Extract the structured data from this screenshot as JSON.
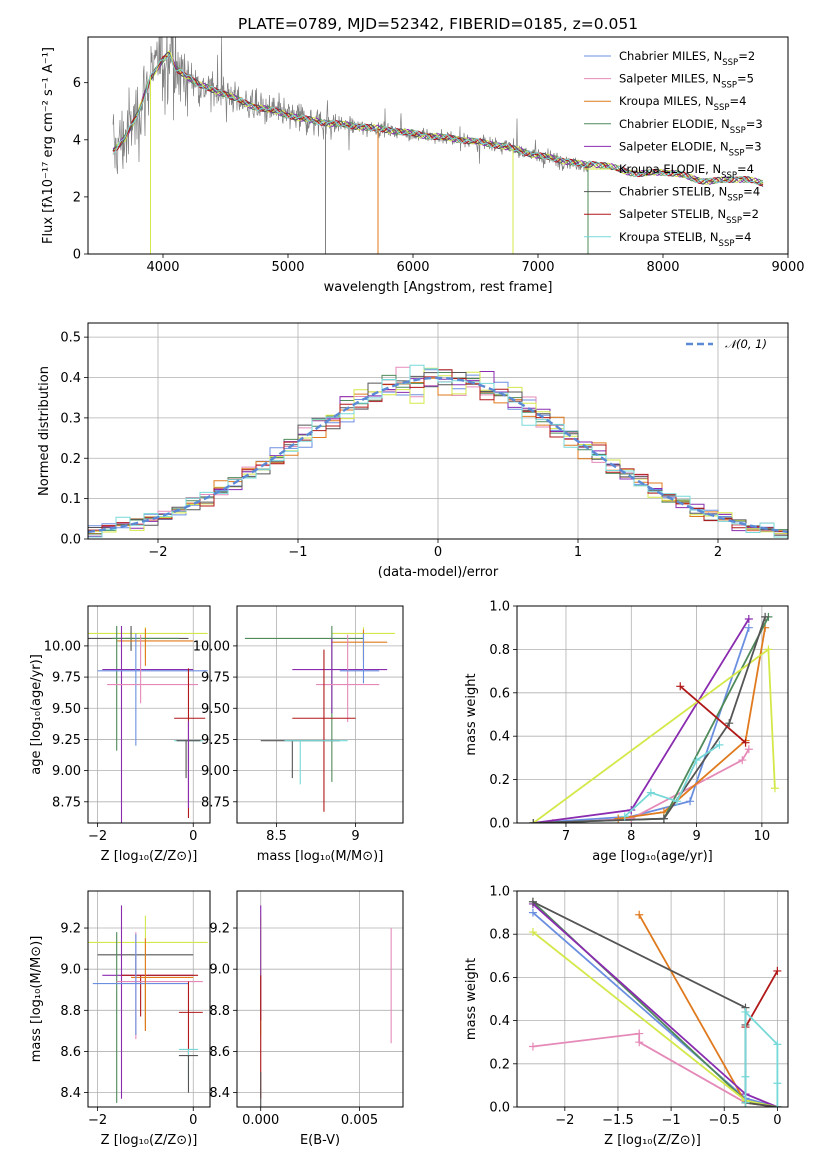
{
  "colors": {
    "Chabrier MILES": "#6b8fe0",
    "Salpeter MILES": "#e58ab8",
    "Kroupa MILES": "#e07a1e",
    "Chabrier ELODIE": "#4f8a5a",
    "Salpeter ELODIE": "#8a2bb0",
    "Kroupa ELODIE": "#d4e84a",
    "Chabrier STELIB": "#555555",
    "Salpeter STELIB": "#b01818",
    "Kroupa STELIB": "#77d8d8",
    "gauss": "#5a8ad6",
    "data": "#808080"
  },
  "chart_data": [
    {
      "type": "line",
      "title": "PLATE=0789, MJD=52342, FIBERID=0185, z=0.051",
      "xlabel": "wavelength [Angstrom, rest frame]",
      "ylabel": "Flux [fλ10⁻¹⁷ erg cm⁻² s⁻¹ A⁻¹]",
      "xlim": [
        3400,
        9000
      ],
      "ylim": [
        0,
        7.6
      ],
      "xticks": [
        4000,
        5000,
        6000,
        7000,
        8000,
        9000
      ],
      "yticks": [
        0,
        2,
        4,
        6
      ],
      "legend_position": "top-right",
      "legend": [
        {
          "name": "Chabrier MILES",
          "nssp": "2"
        },
        {
          "name": "Salpeter MILES",
          "nssp": "5"
        },
        {
          "name": "Kroupa MILES",
          "nssp": "4"
        },
        {
          "name": "Chabrier ELODIE",
          "nssp": "3"
        },
        {
          "name": "Salpeter ELODIE",
          "nssp": "3"
        },
        {
          "name": "Kroupa ELODIE",
          "nssp": "4"
        },
        {
          "name": "Chabrier STELIB",
          "nssp": "4"
        },
        {
          "name": "Salpeter STELIB",
          "nssp": "2"
        },
        {
          "name": "Kroupa STELIB",
          "nssp": "4"
        }
      ],
      "model_continuum": {
        "x": [
          3600,
          3700,
          3800,
          3900,
          4000,
          4050,
          4100,
          4200,
          4300,
          4500,
          4700,
          4900,
          5100,
          5300,
          5500,
          5800,
          6100,
          6400,
          6700,
          7000,
          7400,
          7700,
          8000,
          8300,
          8600,
          8800
        ],
        "y": [
          3.6,
          4.1,
          4.9,
          6.2,
          6.8,
          7.0,
          6.5,
          6.2,
          5.9,
          5.6,
          5.2,
          5.0,
          4.75,
          4.6,
          4.5,
          4.35,
          4.15,
          4.0,
          3.8,
          3.45,
          3.1,
          2.95,
          2.8,
          2.65,
          2.55,
          2.5
        ]
      },
      "data_extent": [
        3600,
        7400
      ],
      "models_red_extent": [
        7400,
        8800
      ]
    },
    {
      "type": "line",
      "xlabel": "(data-model)/error",
      "ylabel": "Normed distribution",
      "xlim": [
        -2.5,
        2.5
      ],
      "ylim": [
        0,
        0.535
      ],
      "xticks": [
        -2,
        -1,
        0,
        1,
        2
      ],
      "yticks": [
        0.0,
        0.1,
        0.2,
        0.3,
        0.4,
        0.5
      ],
      "grid": true,
      "legend_position": "top-right",
      "legend": [
        "𝒩(0, 1)"
      ],
      "bin_width": 0.1
    },
    {
      "type": "scatter",
      "xlabel": "Z [log₁₀(Z/Z⊙)]",
      "ylabel": "age  [log₁₀(age/yr)]",
      "xlim": [
        -2.2,
        0.35
      ],
      "ylim": [
        8.58,
        10.32
      ],
      "xticks": [
        -2,
        0
      ],
      "yticks": [
        8.75,
        9.0,
        9.25,
        9.5,
        9.75,
        10.0
      ],
      "grid": true
    },
    {
      "type": "scatter",
      "xlabel": "mass [log₁₀(M/M⊙)]",
      "xlim": [
        8.25,
        9.3
      ],
      "ylim": [
        8.58,
        10.32
      ],
      "xticks": [
        8.5,
        9.0
      ],
      "yticks": [
        8.75,
        9.0,
        9.25,
        9.5,
        9.75,
        10.0
      ],
      "grid": true
    },
    {
      "type": "line",
      "xlabel": "age  [log₁₀(age/yr)]",
      "ylabel": "mass weight",
      "xlim": [
        6.25,
        10.4
      ],
      "ylim": [
        0,
        1.0
      ],
      "xticks": [
        7,
        8,
        9,
        10
      ],
      "yticks": [
        0.0,
        0.2,
        0.4,
        0.6,
        0.8,
        1.0
      ],
      "grid": true,
      "series": [
        {
          "name": "Chabrier MILES",
          "x": [
            6.5,
            8.0,
            8.9,
            9.8
          ],
          "y": [
            0.0,
            0.03,
            0.1,
            0.9
          ]
        },
        {
          "name": "Salpeter MILES",
          "x": [
            6.8,
            8.0,
            9.7,
            9.8
          ],
          "y": [
            0.0,
            0.02,
            0.29,
            0.34
          ]
        },
        {
          "name": "Kroupa MILES",
          "x": [
            7.8,
            8.5,
            9.75,
            10.05
          ],
          "y": [
            0.02,
            0.05,
            0.38,
            0.9
          ]
        },
        {
          "name": "Chabrier ELODIE",
          "x": [
            6.5,
            8.5,
            10.1
          ],
          "y": [
            0.0,
            0.02,
            0.95
          ]
        },
        {
          "name": "Salpeter ELODIE",
          "x": [
            6.5,
            8.0,
            9.8
          ],
          "y": [
            0.0,
            0.06,
            0.94
          ]
        },
        {
          "name": "Kroupa ELODIE",
          "x": [
            6.5,
            10.1,
            10.2
          ],
          "y": [
            0.0,
            0.8,
            0.16
          ]
        },
        {
          "name": "Chabrier STELIB",
          "x": [
            6.5,
            8.5,
            9.5,
            10.05
          ],
          "y": [
            0.0,
            0.02,
            0.46,
            0.95
          ]
        },
        {
          "name": "Salpeter STELIB",
          "x": [
            8.75,
            9.75
          ],
          "y": [
            0.63,
            0.37
          ]
        },
        {
          "name": "Kroupa STELIB",
          "x": [
            7.9,
            8.3,
            8.7,
            9.0,
            9.35
          ],
          "y": [
            0.03,
            0.14,
            0.1,
            0.29,
            0.36
          ]
        }
      ]
    },
    {
      "type": "scatter",
      "xlabel": "Z [log₁₀(Z/Z⊙)]",
      "ylabel": "mass [log₁₀(M/M⊙)]",
      "xlim": [
        -2.2,
        0.35
      ],
      "ylim": [
        8.33,
        9.38
      ],
      "xticks": [
        -2,
        0
      ],
      "yticks": [
        8.4,
        8.6,
        8.8,
        9.0,
        9.2
      ],
      "grid": true
    },
    {
      "type": "scatter",
      "xlabel": "E(B-V)",
      "xlim": [
        -0.0012,
        0.0072
      ],
      "ylim": [
        8.33,
        9.38
      ],
      "xticks": [
        0.0,
        0.005
      ],
      "xticklabels": [
        "0.000",
        "0.005"
      ],
      "yticks": [
        8.4,
        8.6,
        8.8,
        9.0,
        9.2
      ],
      "grid": true
    },
    {
      "type": "line",
      "xlabel": "Z [log₁₀(Z/Z⊙)]",
      "ylabel": "mass weight",
      "xlim": [
        -2.45,
        0.1
      ],
      "ylim": [
        0,
        1.0
      ],
      "xticks": [
        -2.0,
        -1.5,
        -1.0,
        -0.5,
        0.0
      ],
      "yticks": [
        0.0,
        0.2,
        0.4,
        0.6,
        0.8,
        1.0
      ],
      "grid": true,
      "series": [
        {
          "name": "Chabrier MILES",
          "x": [
            -2.3,
            -0.3,
            0.0
          ],
          "y": [
            0.9,
            0.04,
            0.0
          ]
        },
        {
          "name": "Salpeter MILES",
          "x": [
            -2.3,
            -1.3,
            -1.3,
            -0.3,
            0.0
          ],
          "y": [
            0.28,
            0.34,
            0.3,
            0.02,
            0.0
          ]
        },
        {
          "name": "Kroupa MILES",
          "x": [
            -1.3,
            -0.3,
            0.0
          ],
          "y": [
            0.89,
            0.02,
            0.0
          ]
        },
        {
          "name": "Chabrier ELODIE",
          "x": [
            -2.3,
            -0.3,
            0.0
          ],
          "y": [
            0.95,
            0.03,
            0.0
          ]
        },
        {
          "name": "Salpeter ELODIE",
          "x": [
            -2.3,
            -0.3,
            0.0
          ],
          "y": [
            0.94,
            0.06,
            0.0
          ]
        },
        {
          "name": "Kroupa ELODIE",
          "x": [
            -2.3,
            -0.3,
            0.0
          ],
          "y": [
            0.81,
            0.03,
            0.0
          ]
        },
        {
          "name": "Chabrier STELIB",
          "x": [
            -2.3,
            -0.3,
            -0.3,
            -0.3,
            0.0
          ],
          "y": [
            0.95,
            0.46,
            0.38,
            0.02,
            0.0
          ]
        },
        {
          "name": "Salpeter STELIB",
          "x": [
            -0.3,
            0.0
          ],
          "y": [
            0.37,
            0.63
          ]
        },
        {
          "name": "Kroupa STELIB",
          "x": [
            -0.3,
            -0.3,
            -0.3,
            0.0,
            0.0,
            0.0
          ],
          "y": [
            0.02,
            0.14,
            0.44,
            0.29,
            0.11,
            0.0
          ]
        }
      ]
    }
  ]
}
